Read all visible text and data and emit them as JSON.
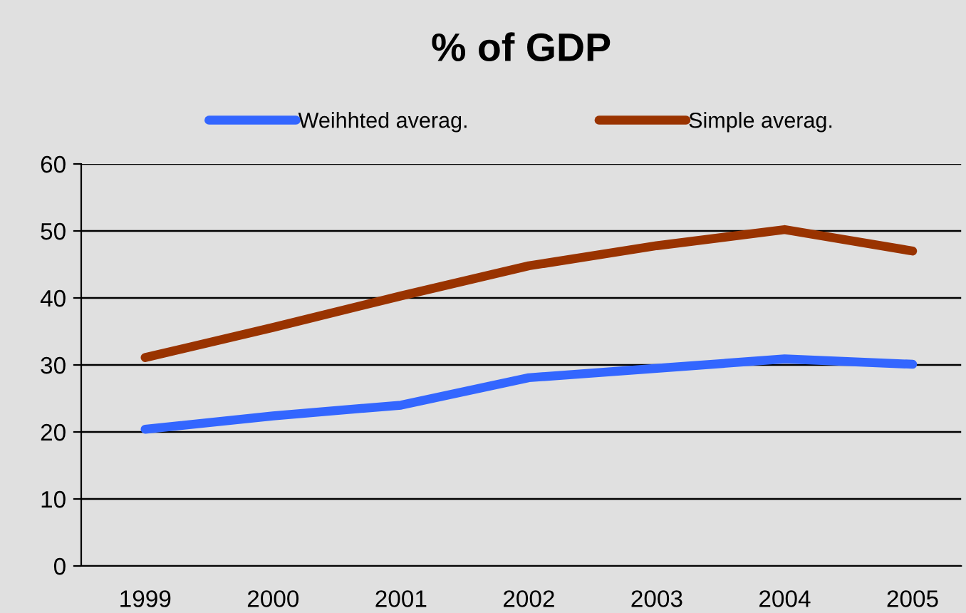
{
  "chart_data": {
    "type": "line",
    "title": "% of GDP",
    "categories": [
      "1999",
      "2000",
      "2001",
      "2002",
      "2003",
      "2004",
      "2005"
    ],
    "series": [
      {
        "name": "Weihhted averag.",
        "color": "#3366ff",
        "values": [
          20.4,
          22.4,
          24.0,
          28.1,
          29.5,
          30.9,
          30.1
        ]
      },
      {
        "name": "Simple averag.",
        "color": "#993300",
        "values": [
          31.1,
          35.6,
          40.3,
          44.8,
          47.8,
          50.2,
          47.0
        ]
      }
    ],
    "ylim": [
      0,
      60
    ],
    "yticks": [
      0,
      10,
      20,
      30,
      40,
      50,
      60
    ],
    "grid": "y",
    "legend": "top",
    "marker": "none",
    "line_style": "solid"
  }
}
